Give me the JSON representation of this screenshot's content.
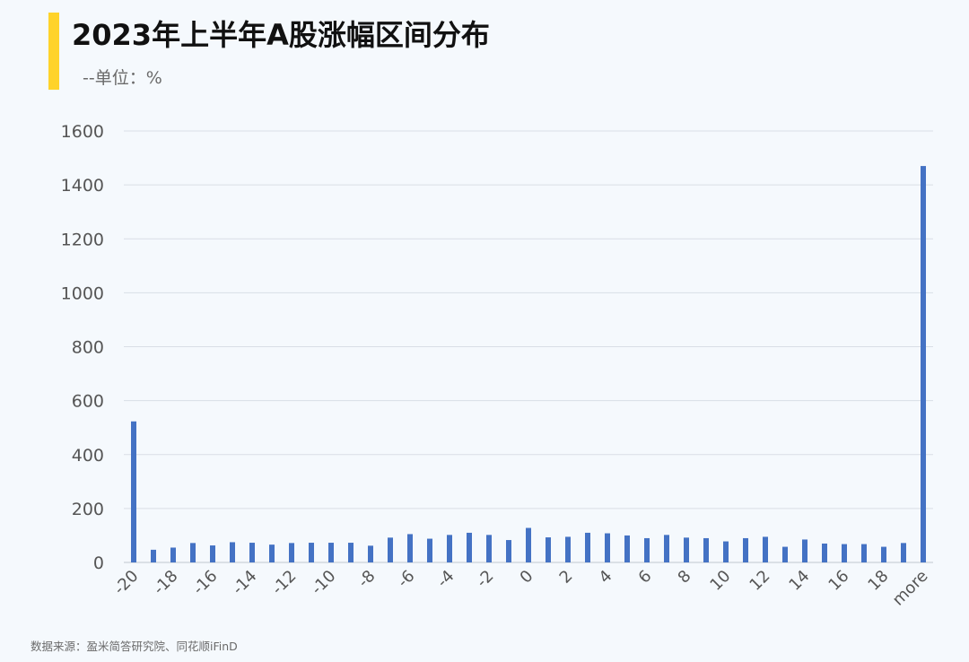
{
  "header": {
    "title": "2023年上半年A股涨幅区间分布",
    "subtitle": "--单位：%"
  },
  "footer": {
    "source": "数据来源：盈米简答研究院、同花顺iFinD"
  },
  "colors": {
    "bar": "#4472c4",
    "accent": "#ffd32a",
    "gridline": "#d9dee6",
    "background": "#f5f9fd"
  },
  "chart_data": {
    "type": "bar",
    "title": "2023年上半年A股涨幅区间分布",
    "subtitle": "--单位：%",
    "categories": [
      "-20",
      "-19",
      "-18",
      "-17",
      "-16",
      "-15",
      "-14",
      "-13",
      "-12",
      "-11",
      "-10",
      "-9",
      "-8",
      "-7",
      "-6",
      "-5",
      "-4",
      "-3",
      "-2",
      "-1",
      "0",
      "1",
      "2",
      "3",
      "4",
      "5",
      "6",
      "7",
      "8",
      "9",
      "10",
      "11",
      "12",
      "13",
      "14",
      "15",
      "16",
      "17",
      "18",
      "19",
      "more"
    ],
    "tick_labels": [
      "-20",
      "-18",
      "-16",
      "-14",
      "-12",
      "-10",
      "-8",
      "-6",
      "-4",
      "-2",
      "0",
      "2",
      "4",
      "6",
      "8",
      "10",
      "12",
      "14",
      "16",
      "18",
      "more"
    ],
    "values": [
      523,
      47,
      55,
      72,
      63,
      75,
      73,
      66,
      72,
      73,
      73,
      73,
      62,
      92,
      105,
      88,
      102,
      110,
      102,
      83,
      128,
      93,
      95,
      110,
      108,
      100,
      90,
      102,
      92,
      90,
      78,
      90,
      95,
      58,
      85,
      70,
      68,
      68,
      58,
      72,
      1470
    ],
    "ylim": [
      0,
      1600
    ],
    "yticks": [
      0,
      200,
      400,
      600,
      800,
      1000,
      1200,
      1400,
      1600
    ],
    "grid": true,
    "legend": "none"
  }
}
